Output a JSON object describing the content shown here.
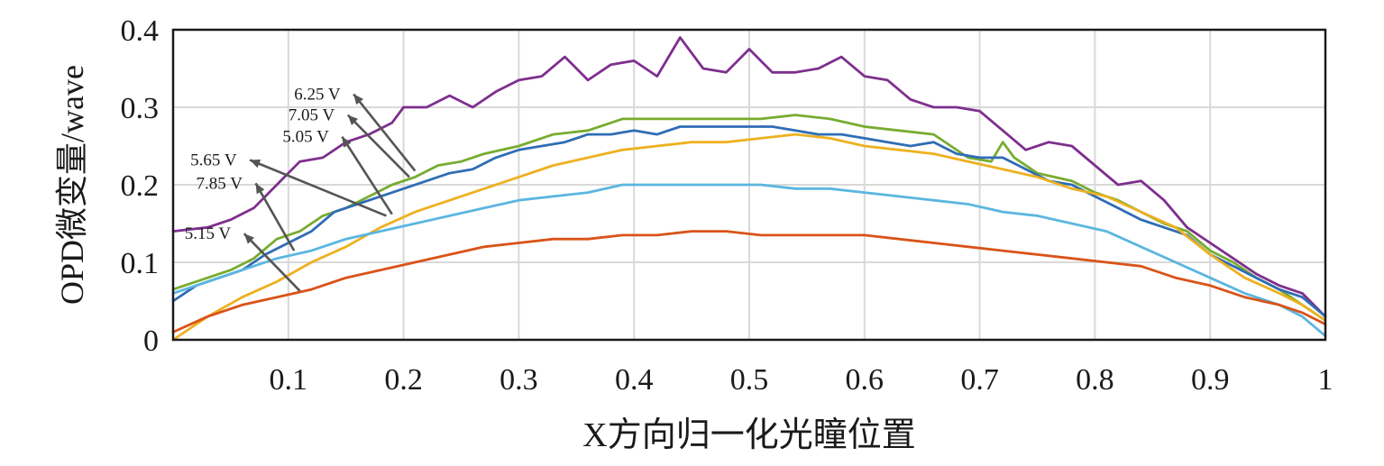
{
  "chart_data": {
    "type": "line",
    "xlabel": "X方向归一化光瞳位置",
    "ylabel": "OPD微变量/wave",
    "xlim": [
      0,
      1
    ],
    "ylim": [
      0,
      0.4
    ],
    "x_ticks": [
      0.1,
      0.2,
      0.3,
      0.4,
      0.5,
      0.6,
      0.7,
      0.8,
      0.9,
      1
    ],
    "x_tick_labels": [
      "0.1",
      "0.2",
      "0.3",
      "0.4",
      "0.5",
      "0.6",
      "0.7",
      "0.8",
      "0.9",
      "1"
    ],
    "y_ticks": [
      0,
      0.1,
      0.2,
      0.3,
      0.4
    ],
    "y_tick_labels": [
      "0",
      "0.1",
      "0.2",
      "0.3",
      "0.4"
    ],
    "grid": true,
    "legend": "none",
    "series": [
      {
        "name": "6.25 V",
        "color": "#7E2F8E",
        "x": [
          0,
          0.03,
          0.05,
          0.07,
          0.09,
          0.11,
          0.13,
          0.15,
          0.17,
          0.19,
          0.2,
          0.22,
          0.24,
          0.26,
          0.28,
          0.3,
          0.32,
          0.34,
          0.36,
          0.38,
          0.4,
          0.42,
          0.44,
          0.46,
          0.48,
          0.5,
          0.52,
          0.54,
          0.56,
          0.58,
          0.6,
          0.62,
          0.64,
          0.66,
          0.68,
          0.7,
          0.72,
          0.74,
          0.76,
          0.78,
          0.8,
          0.82,
          0.84,
          0.86,
          0.88,
          0.9,
          0.92,
          0.94,
          0.96,
          0.98,
          1
        ],
        "y": [
          0.14,
          0.145,
          0.155,
          0.17,
          0.2,
          0.23,
          0.235,
          0.255,
          0.265,
          0.28,
          0.3,
          0.3,
          0.315,
          0.3,
          0.32,
          0.335,
          0.34,
          0.365,
          0.335,
          0.355,
          0.36,
          0.34,
          0.39,
          0.35,
          0.345,
          0.375,
          0.345,
          0.345,
          0.35,
          0.365,
          0.34,
          0.335,
          0.31,
          0.3,
          0.3,
          0.295,
          0.27,
          0.245,
          0.255,
          0.25,
          0.225,
          0.2,
          0.205,
          0.18,
          0.145,
          0.125,
          0.105,
          0.085,
          0.07,
          0.06,
          0.03
        ]
      },
      {
        "name": "7.05 V",
        "color": "#77AC30",
        "x": [
          0,
          0.03,
          0.05,
          0.07,
          0.09,
          0.11,
          0.13,
          0.15,
          0.17,
          0.19,
          0.21,
          0.23,
          0.25,
          0.27,
          0.3,
          0.33,
          0.36,
          0.39,
          0.42,
          0.45,
          0.48,
          0.51,
          0.54,
          0.57,
          0.6,
          0.63,
          0.66,
          0.69,
          0.71,
          0.72,
          0.73,
          0.75,
          0.78,
          0.8,
          0.82,
          0.84,
          0.86,
          0.88,
          0.9,
          0.92,
          0.94,
          0.96,
          0.98,
          1
        ],
        "y": [
          0.065,
          0.08,
          0.09,
          0.105,
          0.13,
          0.14,
          0.16,
          0.17,
          0.185,
          0.2,
          0.21,
          0.225,
          0.23,
          0.24,
          0.25,
          0.265,
          0.27,
          0.285,
          0.285,
          0.285,
          0.285,
          0.285,
          0.29,
          0.285,
          0.275,
          0.27,
          0.265,
          0.235,
          0.23,
          0.255,
          0.235,
          0.215,
          0.205,
          0.19,
          0.18,
          0.165,
          0.15,
          0.14,
          0.115,
          0.1,
          0.08,
          0.065,
          0.045,
          0.025
        ]
      },
      {
        "name": "5.05 V",
        "color": "#2F6DB5",
        "x": [
          0,
          0.02,
          0.04,
          0.06,
          0.08,
          0.1,
          0.12,
          0.14,
          0.16,
          0.18,
          0.2,
          0.22,
          0.24,
          0.26,
          0.28,
          0.3,
          0.32,
          0.34,
          0.36,
          0.38,
          0.4,
          0.42,
          0.44,
          0.46,
          0.48,
          0.5,
          0.52,
          0.54,
          0.56,
          0.58,
          0.6,
          0.62,
          0.64,
          0.66,
          0.68,
          0.7,
          0.72,
          0.74,
          0.76,
          0.78,
          0.8,
          0.82,
          0.84,
          0.86,
          0.88,
          0.9,
          0.92,
          0.94,
          0.96,
          0.98,
          1
        ],
        "y": [
          0.05,
          0.07,
          0.08,
          0.09,
          0.11,
          0.125,
          0.14,
          0.165,
          0.175,
          0.185,
          0.195,
          0.205,
          0.215,
          0.22,
          0.235,
          0.245,
          0.25,
          0.255,
          0.265,
          0.265,
          0.27,
          0.265,
          0.275,
          0.275,
          0.275,
          0.275,
          0.275,
          0.27,
          0.265,
          0.265,
          0.26,
          0.255,
          0.25,
          0.255,
          0.24,
          0.235,
          0.235,
          0.22,
          0.205,
          0.2,
          0.185,
          0.17,
          0.155,
          0.145,
          0.135,
          0.11,
          0.095,
          0.08,
          0.065,
          0.055,
          0.03
        ]
      },
      {
        "name": "5.65 V",
        "color": "#EDB120",
        "x": [
          0,
          0.03,
          0.06,
          0.09,
          0.12,
          0.15,
          0.18,
          0.21,
          0.24,
          0.27,
          0.3,
          0.33,
          0.36,
          0.39,
          0.42,
          0.45,
          0.48,
          0.51,
          0.54,
          0.57,
          0.6,
          0.63,
          0.66,
          0.69,
          0.72,
          0.75,
          0.78,
          0.81,
          0.84,
          0.87,
          0.9,
          0.93,
          0.96,
          0.98,
          1
        ],
        "y": [
          0,
          0.03,
          0.055,
          0.075,
          0.1,
          0.12,
          0.145,
          0.165,
          0.18,
          0.195,
          0.21,
          0.225,
          0.235,
          0.245,
          0.25,
          0.255,
          0.255,
          0.26,
          0.265,
          0.26,
          0.25,
          0.245,
          0.24,
          0.23,
          0.22,
          0.21,
          0.195,
          0.185,
          0.165,
          0.145,
          0.11,
          0.08,
          0.06,
          0.045,
          0.025
        ]
      },
      {
        "name": "7.85 V",
        "color": "#5BB6E0",
        "x": [
          0,
          0.03,
          0.06,
          0.09,
          0.12,
          0.15,
          0.18,
          0.21,
          0.24,
          0.27,
          0.3,
          0.33,
          0.36,
          0.39,
          0.42,
          0.45,
          0.48,
          0.51,
          0.54,
          0.57,
          0.6,
          0.63,
          0.66,
          0.69,
          0.72,
          0.75,
          0.78,
          0.81,
          0.84,
          0.87,
          0.9,
          0.93,
          0.96,
          0.98,
          1
        ],
        "y": [
          0.06,
          0.075,
          0.09,
          0.105,
          0.115,
          0.13,
          0.14,
          0.15,
          0.16,
          0.17,
          0.18,
          0.185,
          0.19,
          0.2,
          0.2,
          0.2,
          0.2,
          0.2,
          0.195,
          0.195,
          0.19,
          0.185,
          0.18,
          0.175,
          0.165,
          0.16,
          0.15,
          0.14,
          0.12,
          0.1,
          0.08,
          0.06,
          0.045,
          0.03,
          0.005
        ]
      },
      {
        "name": "5.15 V",
        "color": "#D95319",
        "x": [
          0,
          0.03,
          0.06,
          0.09,
          0.12,
          0.15,
          0.18,
          0.21,
          0.24,
          0.27,
          0.3,
          0.33,
          0.36,
          0.39,
          0.42,
          0.45,
          0.48,
          0.51,
          0.54,
          0.57,
          0.6,
          0.63,
          0.66,
          0.69,
          0.72,
          0.75,
          0.78,
          0.81,
          0.84,
          0.87,
          0.9,
          0.93,
          0.96,
          0.98,
          1
        ],
        "y": [
          0.01,
          0.03,
          0.045,
          0.055,
          0.065,
          0.08,
          0.09,
          0.1,
          0.11,
          0.12,
          0.125,
          0.13,
          0.13,
          0.135,
          0.135,
          0.14,
          0.14,
          0.135,
          0.135,
          0.135,
          0.135,
          0.13,
          0.125,
          0.12,
          0.115,
          0.11,
          0.105,
          0.1,
          0.095,
          0.08,
          0.07,
          0.055,
          0.045,
          0.035,
          0.02
        ]
      }
    ],
    "annotations": [
      {
        "text": "6.25 V",
        "x": 0.105,
        "y": 0.31,
        "arrow_to": [
          0.21,
          0.218
        ]
      },
      {
        "text": "7.05 V",
        "x": 0.1,
        "y": 0.283,
        "arrow_to": [
          0.205,
          0.21
        ]
      },
      {
        "text": "5.05 V",
        "x": 0.095,
        "y": 0.255,
        "arrow_to": [
          0.19,
          0.162
        ]
      },
      {
        "text": "5.65 V",
        "x": 0.015,
        "y": 0.225,
        "arrow_to": [
          0.185,
          0.16
        ]
      },
      {
        "text": "7.85 V",
        "x": 0.02,
        "y": 0.195,
        "arrow_to": [
          0.105,
          0.115
        ]
      },
      {
        "text": "5.15 V",
        "x": 0.01,
        "y": 0.13,
        "arrow_to": [
          0.11,
          0.063
        ]
      }
    ]
  }
}
